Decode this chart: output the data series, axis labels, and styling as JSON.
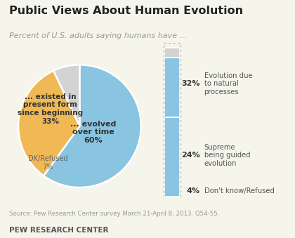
{
  "title": "Public Views About Human Evolution",
  "subtitle": "Percent of U.S. adults saying humans have ...",
  "source": "Source: Pew Research Center survey March 21-April 8, 2013. Q54-55.",
  "footer": "PEW RESEARCH CENTER",
  "pie_values": [
    60,
    33,
    7
  ],
  "pie_colors": [
    "#89c4e1",
    "#f0b955",
    "#d3d3d3"
  ],
  "bar_values": [
    32,
    24,
    4
  ],
  "bar_colors": [
    "#89c4e1",
    "#89c4e1",
    "#d3d3d3"
  ],
  "bar_labels": [
    "Evolution due\nto natural\nprocesses",
    "Supreme\nbeing guided\nevolution",
    "Don't know/Refused"
  ],
  "bar_pct": [
    "32%",
    "24%",
    "4%"
  ],
  "background_color": "#f5f5eb"
}
